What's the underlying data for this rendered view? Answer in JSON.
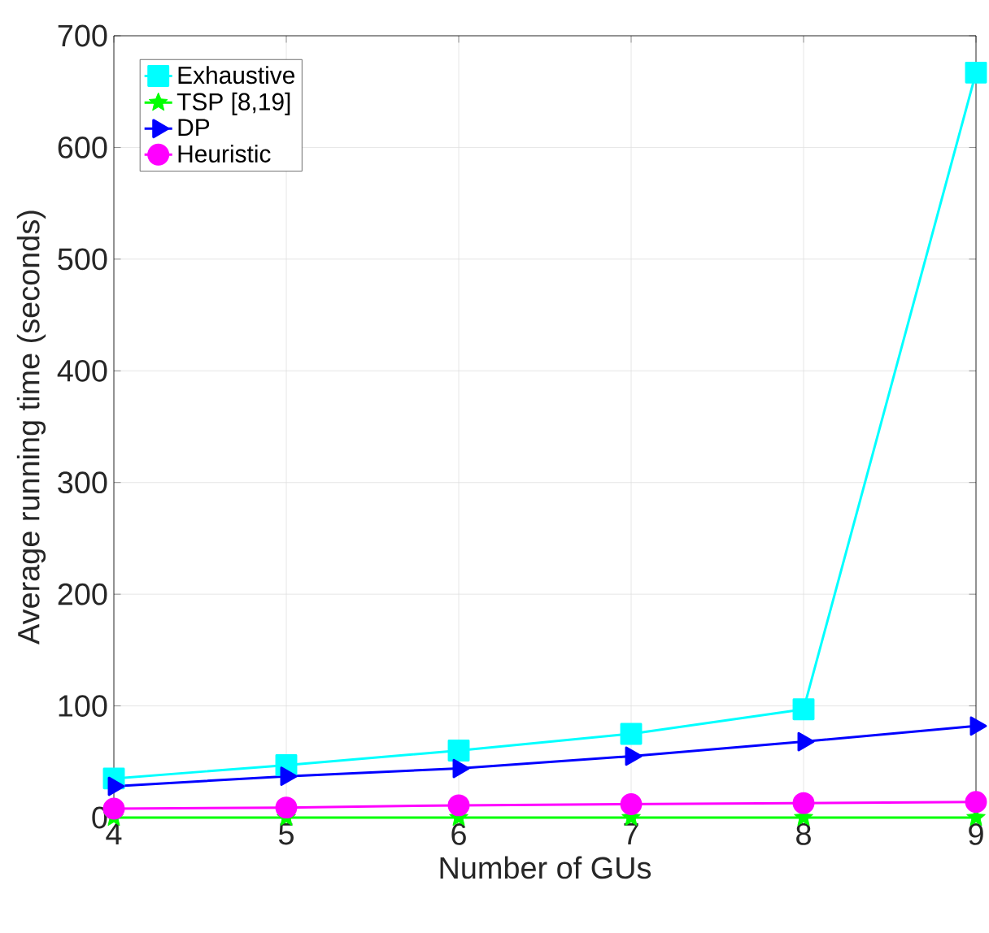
{
  "chart_data": {
    "type": "line",
    "xlabel": "Number of GUs",
    "ylabel": "Average running time (seconds)",
    "x": [
      4,
      5,
      6,
      7,
      8,
      9
    ],
    "xlim": [
      4,
      9
    ],
    "xticks": [
      4,
      5,
      6,
      7,
      8,
      9
    ],
    "ylim": [
      0,
      700
    ],
    "yticks": [
      0,
      100,
      200,
      300,
      400,
      500,
      600,
      700
    ],
    "grid": true,
    "legend": "top left",
    "series": [
      {
        "name": "Exhaustive",
        "color": "#00ffff",
        "marker": "square",
        "values": [
          35,
          47,
          60,
          75,
          97,
          667
        ]
      },
      {
        "name": "TSP [8,19]",
        "color": "#00ff00",
        "marker": "star",
        "values": [
          0,
          0,
          0,
          0,
          0,
          0
        ]
      },
      {
        "name": "DP",
        "color": "#0000ff",
        "marker": "triangle",
        "values": [
          28,
          37,
          44,
          55,
          68,
          82
        ]
      },
      {
        "name": "Heuristic",
        "color": "#ff00ff",
        "marker": "circle",
        "values": [
          8,
          9,
          11,
          12,
          13,
          14
        ]
      }
    ]
  }
}
